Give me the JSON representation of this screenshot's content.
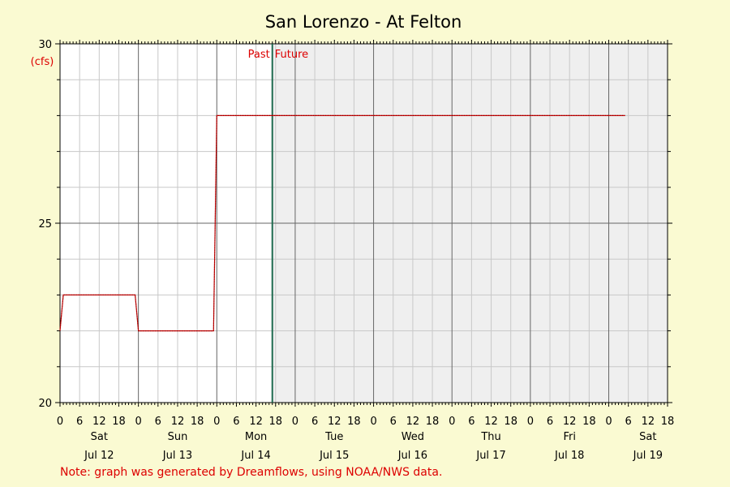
{
  "chart_data": {
    "type": "line",
    "title": "San Lorenzo - At Felton",
    "ylabel": "(cfs)",
    "ylim": [
      20,
      30
    ],
    "yticks": [
      20,
      25,
      30
    ],
    "x_unit": "hours from Sat Jul 12 00:00",
    "xlim": [
      0,
      186
    ],
    "days": [
      {
        "name": "Sat",
        "date": "Jul 12"
      },
      {
        "name": "Sun",
        "date": "Jul 13"
      },
      {
        "name": "Mon",
        "date": "Jul 14"
      },
      {
        "name": "Tue",
        "date": "Jul 15"
      },
      {
        "name": "Wed",
        "date": "Jul 16"
      },
      {
        "name": "Thu",
        "date": "Jul 17"
      },
      {
        "name": "Fri",
        "date": "Jul 18"
      },
      {
        "name": "Sat",
        "date": "Jul 19"
      }
    ],
    "hour_ticks": [
      "0",
      "6",
      "12",
      "18"
    ],
    "now_x": 65,
    "past_label": "Past",
    "future_label": "Future",
    "series": [
      {
        "color": "#cc0000",
        "x": [
          0,
          1,
          23,
          24,
          47,
          48,
          173
        ],
        "y": [
          22,
          23,
          23,
          22,
          22,
          28,
          28
        ]
      }
    ],
    "grid": true,
    "note": "Note: graph was generated by Dreamflows, using NOAA/NWS data."
  },
  "colors": {
    "background": "#fafad2",
    "plot_past": "#ffffff",
    "plot_future": "#efefef",
    "line": "#cc0000",
    "now_line": "#1f6b4f",
    "annotation": "#dd0000"
  }
}
